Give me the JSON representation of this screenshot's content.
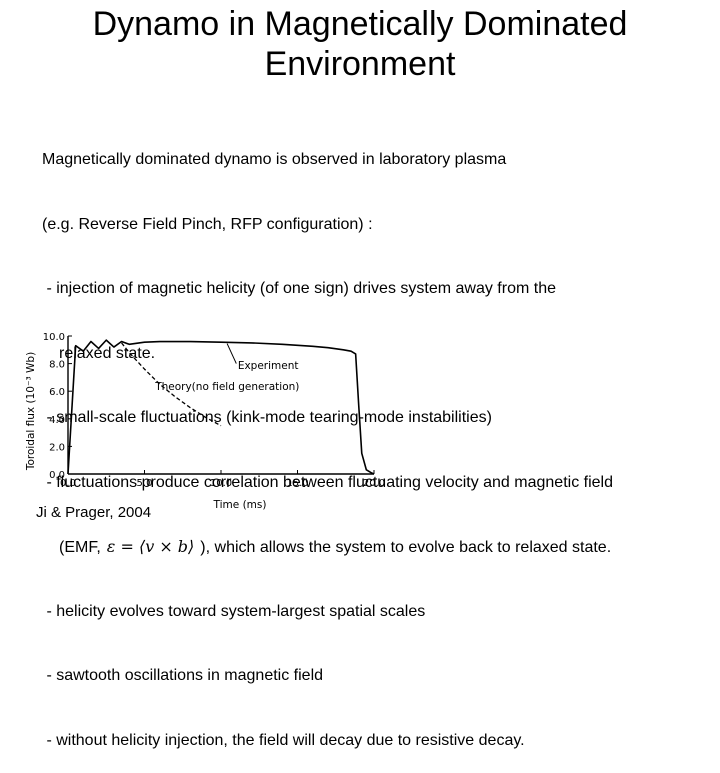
{
  "slide": {
    "title_line1": "Dynamo in Magnetically Dominated",
    "title_line2": "Environment",
    "intro_line1": "Magnetically dominated dynamo is observed in laboratory plasma",
    "intro_line2": "(e.g. Reverse Field Pinch, RFP configuration) :",
    "bullet1_line1": " - injection of magnetic helicity (of one sign) drives system away from the",
    "bullet1_line2": "relaxed state.",
    "bullet2": " - small-scale fluctuations (kink-mode tearing-mode instabilities)",
    "bullet3_line1": " - fluctuations produce correlation between fluctuating velocity and magnetic field",
    "bullet3_line2_prefix": "(EMF,",
    "emf_formula": "ε = ⟨v × b⟩",
    "bullet3_line2_suffix": "), which allows the system to evolve back to relaxed state.",
    "bullet4": " - helicity evolves toward system-largest spatial scales",
    "bullet5": " - sawtooth oscillations in magnetic field",
    "bullet6": " - without helicity injection, the field will decay due to resistive decay.",
    "citation": "Ji & Prager, 2004"
  },
  "chart_data": {
    "type": "line",
    "ylabel": "Toroidal flux (10⁻³ Wb)",
    "xlabel": "Time (ms)",
    "xlim": [
      0,
      20
    ],
    "ylim": [
      0,
      10
    ],
    "x_ticks": [
      "0.0",
      "5.0",
      "10.0",
      "15.0",
      "20.0"
    ],
    "y_ticks": [
      "0.0",
      "2.0",
      "4.0",
      "6.0",
      "8.0",
      "10.0"
    ],
    "annotations": [
      "Experiment",
      "Theory(no field generation)"
    ],
    "series": [
      {
        "name": "Experiment",
        "x": [
          0.0,
          0.5,
          1.0,
          1.5,
          2.0,
          2.5,
          3.0,
          3.5,
          4.0,
          5.0,
          6.0,
          8.0,
          10.0,
          12.0,
          14.0,
          16.0,
          17.0,
          18.0,
          18.5,
          18.8,
          19.0,
          19.2,
          19.5,
          19.8,
          20.0
        ],
        "y": [
          0.0,
          9.3,
          8.9,
          9.6,
          9.1,
          9.7,
          9.2,
          9.6,
          9.4,
          9.55,
          9.6,
          9.6,
          9.55,
          9.5,
          9.4,
          9.25,
          9.15,
          9.0,
          8.9,
          8.7,
          5.0,
          1.5,
          0.3,
          0.1,
          0.0
        ]
      },
      {
        "name": "Theory(no field generation)",
        "x": [
          3.5,
          4.0,
          5.0,
          6.0,
          7.0,
          8.0,
          9.0,
          10.0
        ],
        "y": [
          9.5,
          8.8,
          7.6,
          6.5,
          5.6,
          4.8,
          4.1,
          3.5
        ]
      }
    ]
  },
  "colors": {
    "text": "#000000",
    "background": "#ffffff"
  }
}
